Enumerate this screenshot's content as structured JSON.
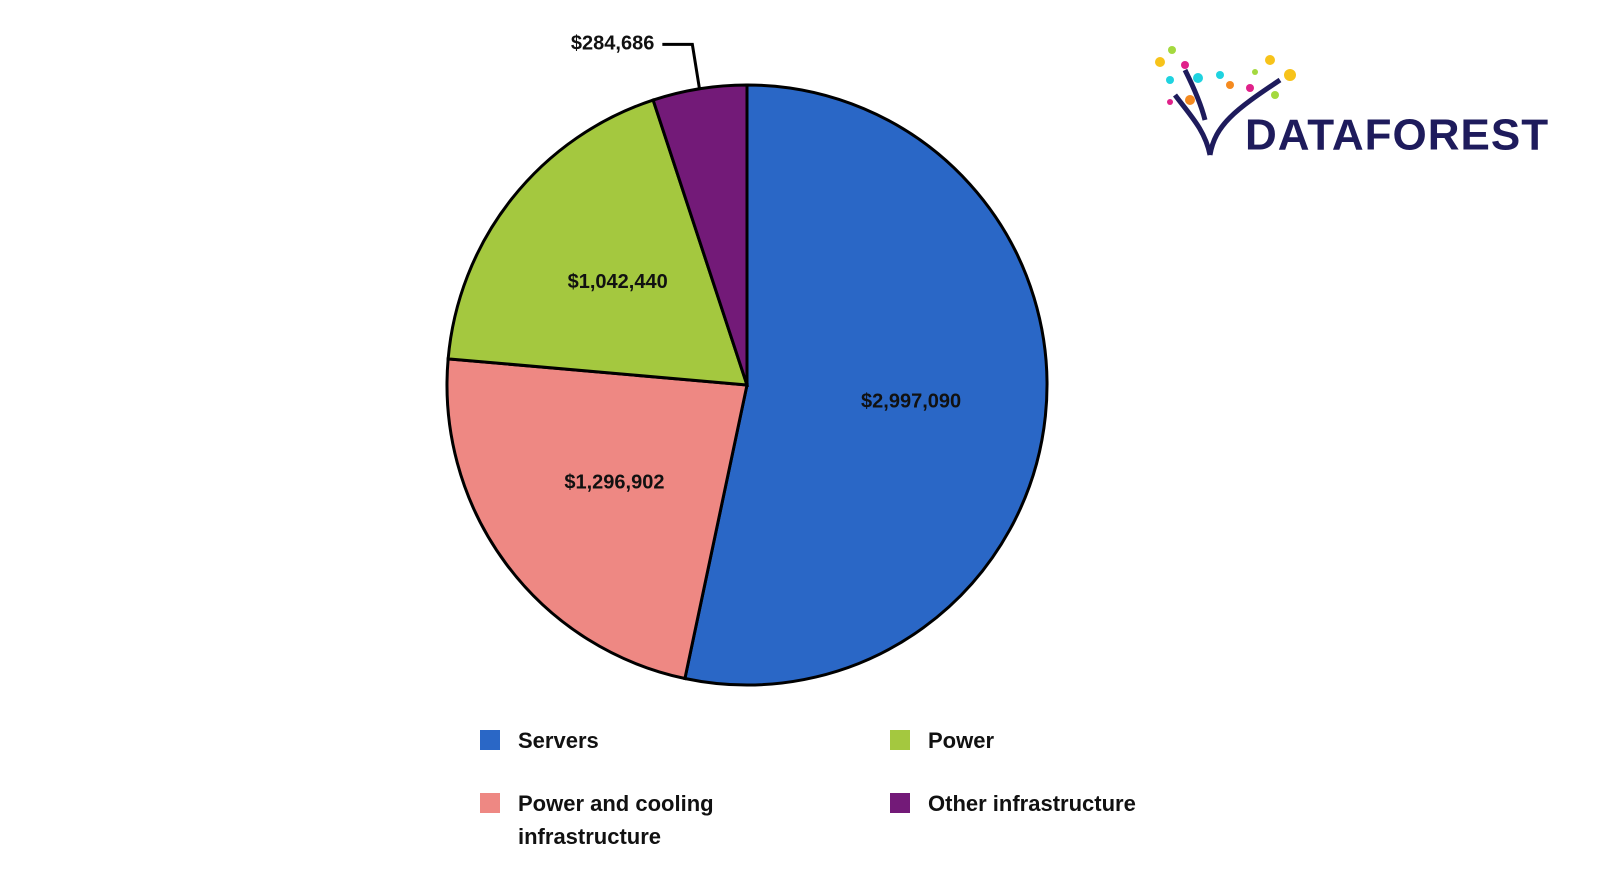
{
  "chart_data": {
    "type": "pie",
    "categories": [
      "Servers",
      "Power and cooling infrastructure",
      "Power",
      "Other infrastructure"
    ],
    "values": [
      2997090,
      1296902,
      1042440,
      284686
    ],
    "value_labels": [
      "$2,997,090",
      "$1,296,902",
      "$1,042,440",
      "$284,686"
    ],
    "colors": [
      "#2a67c6",
      "#ee8883",
      "#a4c83f",
      "#731a78"
    ]
  },
  "logo": "DATAFOREST"
}
